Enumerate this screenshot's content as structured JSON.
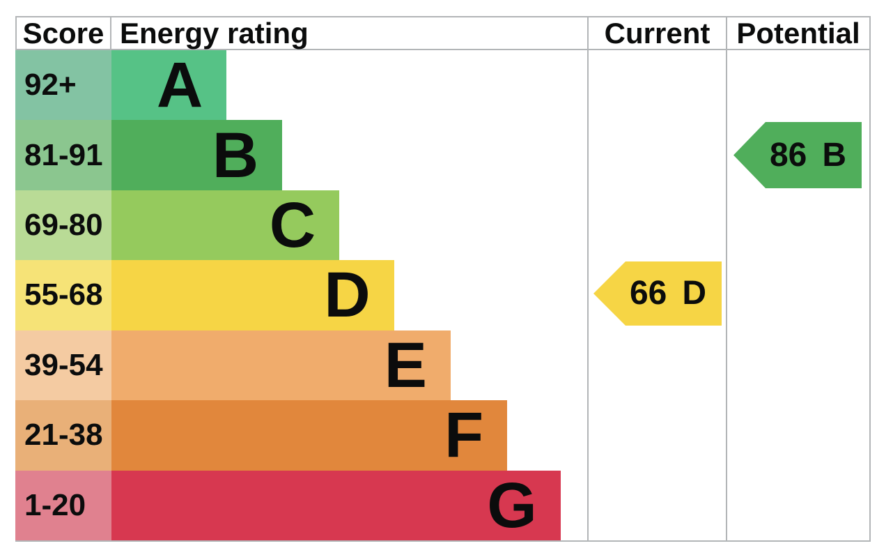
{
  "header": {
    "score": "Score",
    "energy_rating": "Energy rating",
    "current": "Current",
    "potential": "Potential"
  },
  "colors": {
    "border": "#b2b5b7",
    "text": "#0b0c0c",
    "background": "#ffffff"
  },
  "chart_data": {
    "type": "bar",
    "title": "Energy rating",
    "orientation": "horizontal",
    "categories": [
      "A",
      "B",
      "C",
      "D",
      "E",
      "F",
      "G"
    ],
    "bands": [
      {
        "letter": "A",
        "score": "92+",
        "bar_color": "#56c286",
        "score_bg": "#83c3a3",
        "width": "24.2%"
      },
      {
        "letter": "B",
        "score": "81-91",
        "bar_color": "#50ae5b",
        "score_bg": "#8bc68f",
        "width": "35.9%"
      },
      {
        "letter": "C",
        "score": "69-80",
        "bar_color": "#95ca5d",
        "score_bg": "#b9db96",
        "width": "47.9%"
      },
      {
        "letter": "D",
        "score": "55-68",
        "bar_color": "#f6d545",
        "score_bg": "#f6e377",
        "width": "59.4%"
      },
      {
        "letter": "E",
        "score": "39-54",
        "bar_color": "#f0ac6c",
        "score_bg": "#f4cba2",
        "width": "71.3%"
      },
      {
        "letter": "F",
        "score": "21-38",
        "bar_color": "#e1873c",
        "score_bg": "#e9b078",
        "width": "83.2%"
      },
      {
        "letter": "G",
        "score": "1-20",
        "bar_color": "#d73850",
        "score_bg": "#e0818f",
        "width": "94.4%"
      }
    ],
    "current": {
      "value": "66",
      "letter": "D",
      "color": "#f6d545"
    },
    "potential": {
      "value": "86",
      "letter": "B",
      "color": "#50ae5b"
    }
  }
}
